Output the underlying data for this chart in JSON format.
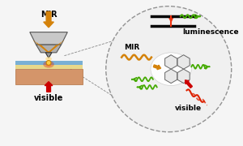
{
  "bg_color": "#f5f5f5",
  "mir_label": "MIR",
  "visible_label": "visible",
  "luminescence_label": "luminescence",
  "mir_circle_label": "MIR",
  "visible_circle_label": "visible",
  "colors": {
    "mir_arrow": "#d4820a",
    "visible_arrow": "#cc0000",
    "green_wave": "#44aa00",
    "gold_wave": "#d4820a",
    "tip_gray": "#c8c8c8",
    "tip_dark": "#555555",
    "sample_blue": "#7ab0d4",
    "sample_yellow": "#e8d88a",
    "sample_skin": "#d4956a",
    "circle_bg": "#f0f0f0",
    "dashed_line": "#888888",
    "red_emission": "#dd2200"
  }
}
